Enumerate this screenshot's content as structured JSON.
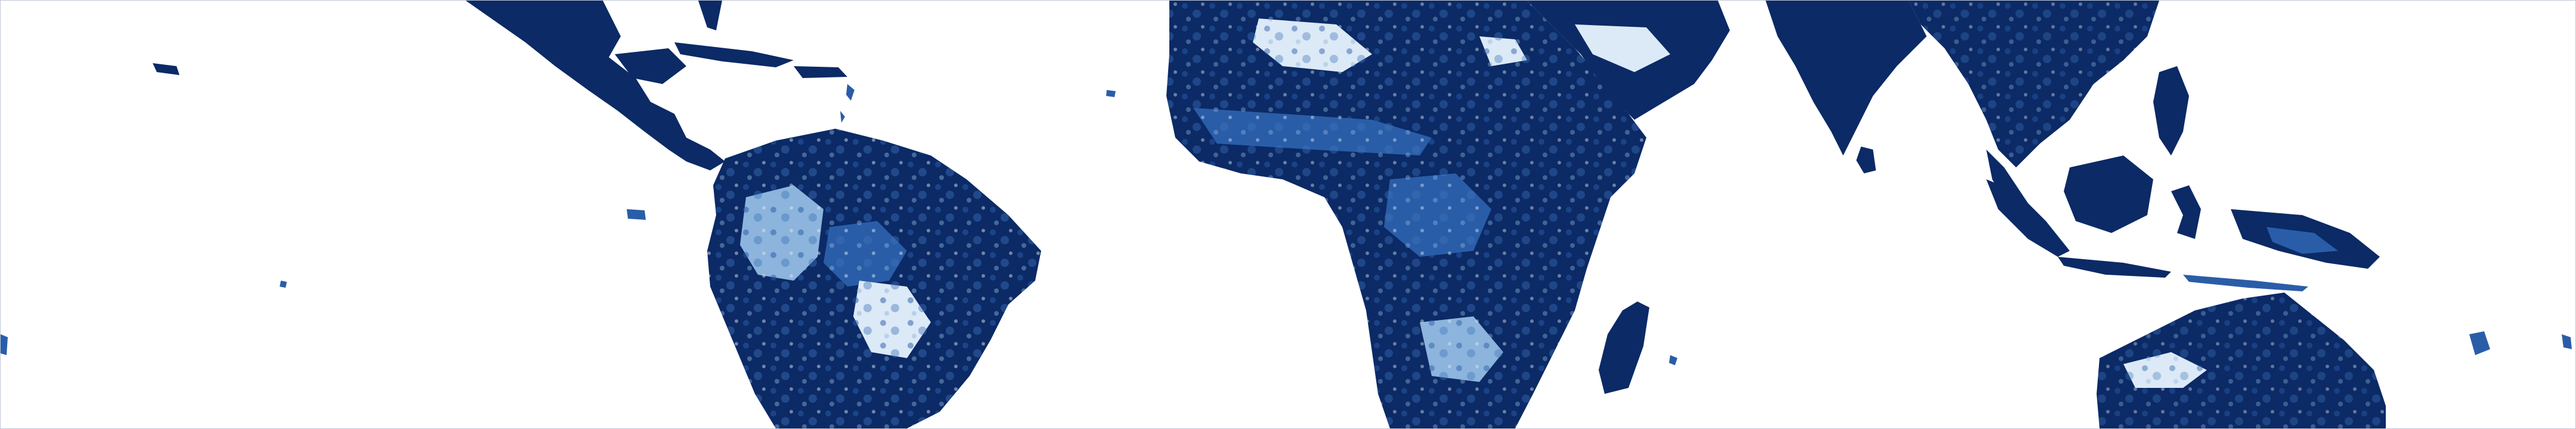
{
  "map": {
    "type": "raster-choropleth",
    "projection": "equirectangular-tropical-band",
    "background": "#ffffff",
    "border_color": "#bfc7d4",
    "colors": {
      "ocean": "#ffffff",
      "land_high": "#0b2a66",
      "land_mid": "#2a5da8",
      "land_low": "#8cb4dc",
      "land_lowest": "#dce9f6"
    },
    "regions": [
      "central-america-caribbean",
      "south-america",
      "africa",
      "madagascar",
      "arabian-peninsula",
      "south-asia",
      "southeast-asia",
      "maritime-southeast-asia",
      "new-guinea",
      "northern-australia",
      "pacific-islands"
    ]
  }
}
